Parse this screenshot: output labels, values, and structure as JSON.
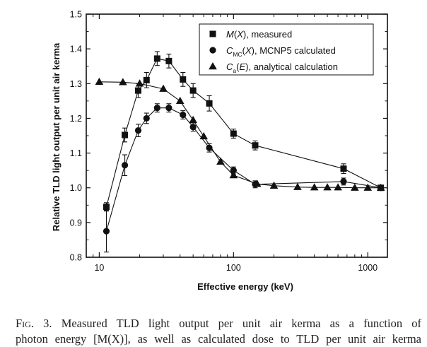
{
  "chart_data": {
    "type": "scatter",
    "xlabel": "Effective energy (keV)",
    "ylabel": "Relative TLD light output per unit air kerma",
    "xscale": "log",
    "xlim": [
      8,
      1400
    ],
    "ylim": [
      0.8,
      1.5
    ],
    "xticks": [
      10,
      100,
      1000
    ],
    "xtick_labels": [
      "10",
      "100",
      "1000"
    ],
    "yticks": [
      0.8,
      0.9,
      1.0,
      1.1,
      1.2,
      1.3,
      1.4,
      1.5
    ],
    "ytick_labels": [
      "0.8",
      "0.9",
      "1.0",
      "1.1",
      "1.2",
      "1.3",
      "1.4",
      "1.5"
    ],
    "legend_position": "top-right",
    "grid": false,
    "series": [
      {
        "name": "M(X), measured",
        "marker": "square",
        "color": "#111111",
        "x": [
          11.3,
          15.5,
          19.5,
          22.5,
          27,
          33,
          42,
          50,
          66,
          100,
          145,
          660,
          1250
        ],
        "y": [
          0.945,
          1.152,
          1.28,
          1.31,
          1.372,
          1.365,
          1.312,
          1.28,
          1.243,
          1.156,
          1.122,
          1.055,
          1.0
        ],
        "err": [
          0.012,
          0.02,
          0.02,
          0.022,
          0.02,
          0.02,
          0.02,
          0.02,
          0.022,
          0.013,
          0.013,
          0.014,
          0.005
        ]
      },
      {
        "name": "CMC(X), MCNP5 calculated",
        "marker": "circle",
        "color": "#111111",
        "x": [
          11.3,
          15.5,
          19.5,
          22.5,
          27,
          33,
          42,
          50,
          66,
          100,
          145,
          660,
          1250
        ],
        "y": [
          0.875,
          1.065,
          1.165,
          1.2,
          1.23,
          1.23,
          1.21,
          1.175,
          1.115,
          1.05,
          1.01,
          1.018,
          1.0
        ],
        "err": [
          0.06,
          0.03,
          0.018,
          0.015,
          0.012,
          0.012,
          0.012,
          0.012,
          0.012,
          0.01,
          0.01,
          0.01,
          0.005
        ]
      },
      {
        "name": "Ca(E), analytical calculation",
        "marker": "triangle",
        "color": "#111111",
        "x": [
          10,
          15,
          20,
          30,
          40,
          50,
          60,
          80,
          100,
          150,
          200,
          300,
          400,
          500,
          600,
          800,
          1000,
          1250
        ],
        "y": [
          1.305,
          1.304,
          1.3,
          1.285,
          1.25,
          1.195,
          1.148,
          1.075,
          1.036,
          1.011,
          1.006,
          1.002,
          1.001,
          1.001,
          1.001,
          1.0,
          1.0,
          1.0
        ]
      }
    ],
    "legend": [
      {
        "main": "M",
        "sub": "",
        "arg": "X",
        "rest": ", measured"
      },
      {
        "main": "C",
        "sub": "MC",
        "arg": "X",
        "rest": ", MCNP5 calculated"
      },
      {
        "main": "C",
        "sub": "a",
        "arg": "E",
        "rest": ", analytical calculation"
      }
    ]
  },
  "caption": {
    "fig": "Fig",
    "line1": ". 3. Measured TLD light output per unit air kerma as a function of",
    "line2": "photon energy [M(X)], as well as calculated dose to TLD per unit air kerma"
  }
}
